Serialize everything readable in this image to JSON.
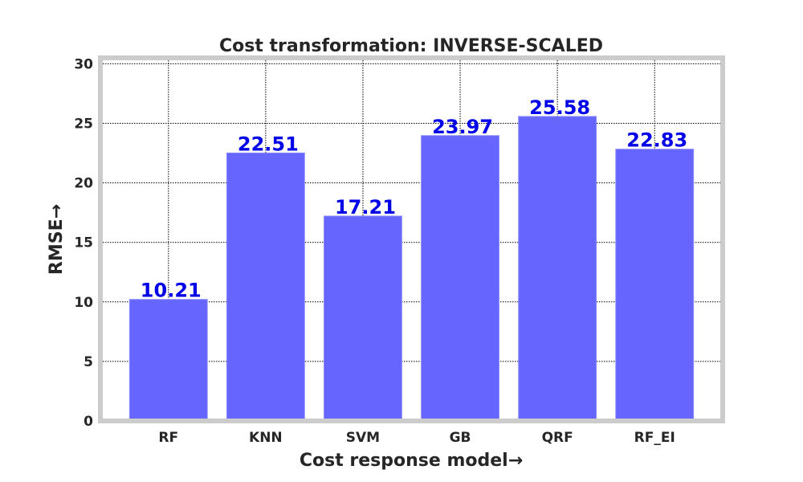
{
  "chart_data": {
    "type": "bar",
    "title": "Cost transformation: INVERSE-SCALED",
    "xlabel": "Cost response model→",
    "ylabel": "RMSE→",
    "categories": [
      "RF",
      "KNN",
      "SVM",
      "GB",
      "QRF",
      "RF_EI"
    ],
    "values": [
      10.21,
      22.51,
      17.21,
      23.97,
      25.58,
      22.83
    ],
    "value_labels": [
      "10.21",
      "22.51",
      "17.21",
      "23.97",
      "25.58",
      "22.83"
    ],
    "ylim": [
      0,
      30.5
    ],
    "yticks": [
      "0",
      "5",
      "10",
      "15",
      "20",
      "25",
      "30"
    ],
    "grid": true,
    "colors": {
      "bar_fill": "#6666ff",
      "bar_edge": "#8c8cff",
      "data_label": "#0000e6",
      "frame": "#cccccc",
      "text": "#262626"
    }
  }
}
